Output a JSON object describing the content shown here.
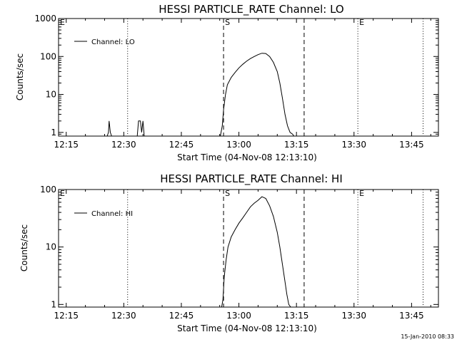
{
  "footer_date": "15-Jan-2010 08:33",
  "colors": {
    "background": "#ffffff",
    "foreground": "#000000"
  },
  "chart_data": [
    {
      "type": "line",
      "title": "HESSI PARTICLE_RATE Channel: LO",
      "xlabel": "Start Time (04-Nov-08 12:13:10)",
      "ylabel": "Counts/sec",
      "y_scale": "log",
      "xlim": [
        "12:13",
        "13:52"
      ],
      "ylim": [
        0.8,
        1000
      ],
      "x_ticks": [
        "12:15",
        "12:30",
        "12:45",
        "13:00",
        "13:15",
        "13:30",
        "13:45"
      ],
      "y_ticks": [
        "1",
        "10",
        "100",
        "1000"
      ],
      "legend": {
        "position": "top-left",
        "entries": [
          "Channel: LO"
        ]
      },
      "markers": [
        {
          "label": "E",
          "time": "12:13",
          "style": "dotted"
        },
        {
          "label": "",
          "time": "12:31",
          "style": "dotted"
        },
        {
          "label": "S",
          "time": "12:56",
          "style": "dashed"
        },
        {
          "label": "",
          "time": "13:17",
          "style": "dashed"
        },
        {
          "label": "E",
          "time": "13:31",
          "style": "dotted"
        },
        {
          "label": "",
          "time": "13:48",
          "style": "dotted"
        }
      ],
      "series": [
        {
          "name": "Channel: LO",
          "x": [
            "12:25:40",
            "12:26:00",
            "12:26:10",
            "12:26:30",
            "12:26:50",
            "12:33:30",
            "12:33:50",
            "12:34:20",
            "12:34:40",
            "12:35:00",
            "12:35:20",
            "12:55:10",
            "12:55:40",
            "12:56:00",
            "12:56:30",
            "12:57:00",
            "12:58:00",
            "12:59:00",
            "13:00:00",
            "13:01:00",
            "13:02:00",
            "13:03:00",
            "13:04:00",
            "13:05:00",
            "13:06:00",
            "13:07:00",
            "13:08:00",
            "13:09:00",
            "13:10:00",
            "13:10:40",
            "13:11:20",
            "13:12:00",
            "13:12:40",
            "13:13:20",
            "13:14:00",
            "13:14:20"
          ],
          "y": [
            0.8,
            1.0,
            2.0,
            1.0,
            0.8,
            0.8,
            2.0,
            2.0,
            1.0,
            2.0,
            0.8,
            0.8,
            1.5,
            4.0,
            10,
            18,
            28,
            38,
            50,
            62,
            75,
            88,
            100,
            112,
            122,
            120,
            100,
            70,
            40,
            20,
            8,
            3,
            1.5,
            1.0,
            0.9,
            0.8
          ]
        }
      ]
    },
    {
      "type": "line",
      "title": "HESSI PARTICLE_RATE Channel: HI",
      "xlabel": "Start Time (04-Nov-08 12:13:10)",
      "ylabel": "Counts/sec",
      "y_scale": "log",
      "xlim": [
        "12:13",
        "13:52"
      ],
      "ylim": [
        0.9,
        100
      ],
      "x_ticks": [
        "12:15",
        "12:30",
        "12:45",
        "13:00",
        "13:15",
        "13:30",
        "13:45"
      ],
      "y_ticks": [
        "1",
        "10",
        "100"
      ],
      "legend": {
        "position": "top-left",
        "entries": [
          "Channel: HI"
        ]
      },
      "markers": [
        {
          "label": "E",
          "time": "12:13",
          "style": "dotted"
        },
        {
          "label": "",
          "time": "12:31",
          "style": "dotted"
        },
        {
          "label": "S",
          "time": "12:56",
          "style": "dashed"
        },
        {
          "label": "",
          "time": "13:17",
          "style": "dashed"
        },
        {
          "label": "E",
          "time": "13:31",
          "style": "dotted"
        },
        {
          "label": "",
          "time": "13:48",
          "style": "dotted"
        }
      ],
      "series": [
        {
          "name": "Channel: HI",
          "x": [
            "12:55:30",
            "12:55:50",
            "12:56:10",
            "12:56:40",
            "12:57:10",
            "12:58:00",
            "12:59:00",
            "13:00:00",
            "13:01:00",
            "13:02:00",
            "13:03:00",
            "13:04:00",
            "13:05:00",
            "13:06:00",
            "13:07:00",
            "13:08:00",
            "13:09:00",
            "13:10:00",
            "13:10:40",
            "13:11:20",
            "13:12:00",
            "13:12:30",
            "13:13:00",
            "13:13:30"
          ],
          "y": [
            0.9,
            1.2,
            3.0,
            6.0,
            10,
            15,
            20,
            26,
            32,
            40,
            50,
            58,
            65,
            75,
            70,
            52,
            34,
            18,
            10,
            5,
            2.5,
            1.5,
            1.0,
            0.9
          ]
        }
      ]
    }
  ]
}
